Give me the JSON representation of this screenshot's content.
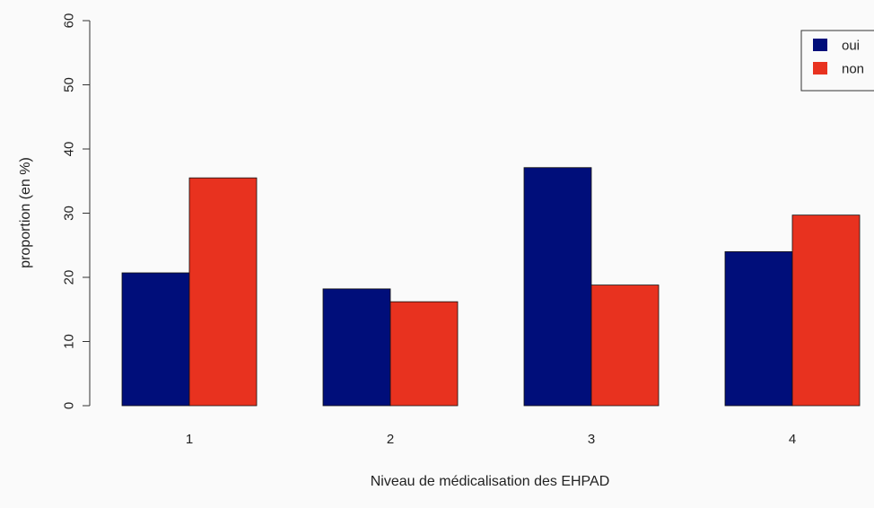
{
  "chart_data": {
    "type": "bar",
    "title": "",
    "xlabel": "Niveau de médicalisation des EHPAD",
    "ylabel": "proportion (en %)",
    "ylim": [
      0,
      60
    ],
    "yticks": [
      "0",
      "10",
      "20",
      "30",
      "40",
      "50",
      "60"
    ],
    "categories": [
      "1",
      "2",
      "3",
      "4"
    ],
    "series": [
      {
        "name": "oui",
        "color": "#000e7a",
        "values": [
          20.7,
          18.2,
          37.1,
          24.0
        ]
      },
      {
        "name": "non",
        "color": "#e8321f",
        "values": [
          35.5,
          16.2,
          18.8,
          29.7
        ]
      }
    ],
    "legend": {
      "placement": "top-right"
    },
    "grid": false
  }
}
